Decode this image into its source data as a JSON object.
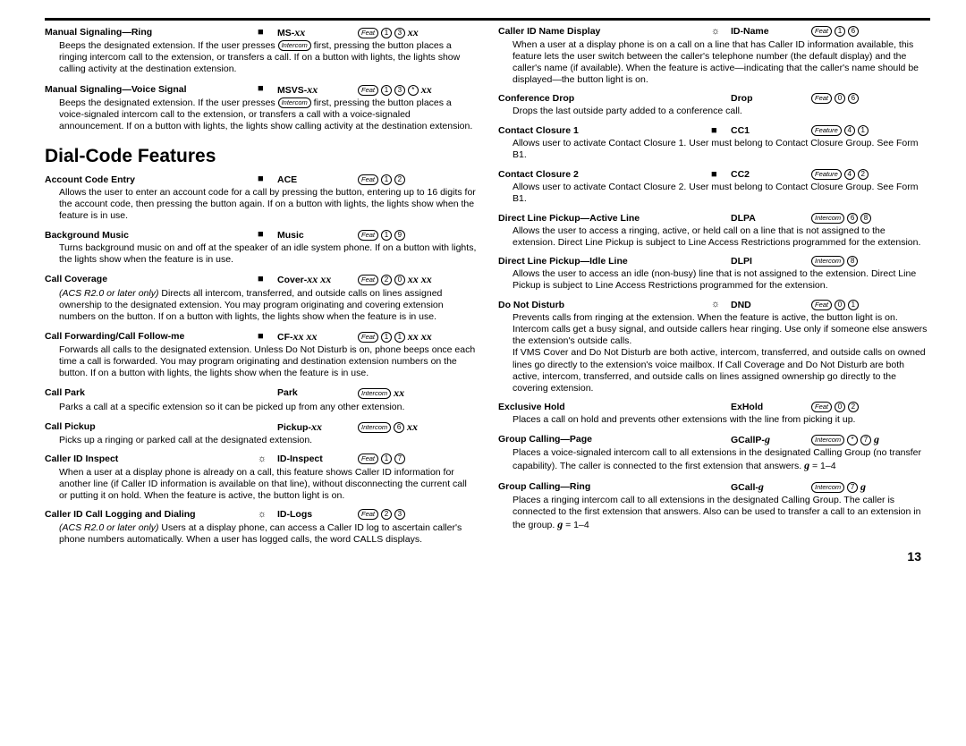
{
  "page_number": "13",
  "section_title": "Dial-Code Features",
  "colors": {
    "text": "#000000",
    "bg": "#ffffff",
    "rule": "#000000"
  },
  "fonts": {
    "body_pt": 10.5,
    "title_pt": 21
  },
  "left": [
    {
      "name": "Manual Signaling—Ring",
      "icon": "■",
      "short": "MS-",
      "short_xx": "xx",
      "seq": "<span class='key'>Feat</span> <span class='ck'>1</span> <span class='ck'>3</span> <span class='xx'>xx</span>",
      "desc": "Beeps the designated extension. If the user presses <span class='key'>Intercom</span> first, pressing the button places a ringing intercom call to the extension, or transfers a call. If on a button with lights, the lights show calling activity at the destination extension."
    },
    {
      "name": "Manual Signaling—Voice Signal",
      "icon": "■",
      "short": "MSVS-",
      "short_xx": "xx",
      "seq": "<span class='key'>Feat</span> <span class='ck'>1</span> <span class='ck'>3</span> <span class='ck'>*</span> <span class='xx'>xx</span>",
      "desc": "Beeps the designated extension. If the user presses <span class='key'>Intercom</span> first, pressing the button places a voice-signaled intercom call to the extension, or transfers a call with a voice-signaled announcement. If on a button with lights, the lights show calling activity at the destination extension."
    },
    {
      "section_break": true
    },
    {
      "name": "Account Code Entry",
      "icon": "■",
      "short": "ACE",
      "seq": "<span class='key'>Feat</span> <span class='ck'>1</span> <span class='ck'>2</span>",
      "desc": "Allows the user to enter an account code for a call by pressing the button, entering up to 16 digits for the account code, then pressing the button again. If on a button with lights, the lights show when the feature is in use."
    },
    {
      "name": "Background Music",
      "icon": "■",
      "short": "Music",
      "seq": "<span class='key'>Feat</span> <span class='ck'>1</span> <span class='ck'>9</span>",
      "desc": "Turns background music on and off at the speaker of an idle system phone. If on a button with lights, the lights show when the feature is in use."
    },
    {
      "name": "Call Coverage",
      "icon": "■",
      "short": "Cover-",
      "short_xx": "xx xx",
      "seq": "<span class='key'>Feat</span> <span class='ck'>2</span> <span class='ck'>0</span> <span class='xx'>xx xx</span>",
      "desc": "<span class='it'>(ACS R2.0 or later only)</span> Directs all intercom, transferred, and outside calls on lines assigned ownership to the designated extension. You may program originating and covering extension numbers on the button. If on a button with lights, the lights show when the feature is in use."
    },
    {
      "name": "Call Forwarding/Call Follow-me",
      "icon": "■",
      "short": "CF-",
      "short_xx": "xx xx",
      "seq": "<span class='key'>Feat</span> <span class='ck'>1</span> <span class='ck'>1</span> <span class='xx'>xx xx</span>",
      "desc": "Forwards all calls to the designated extension. Unless Do Not Disturb is on, phone beeps once each time a call is forwarded. You may program originating and destination extension numbers on the button. If on a button with lights, the lights show when the feature is in use."
    },
    {
      "name": "Call Park",
      "icon": "",
      "short": "Park",
      "seq": "<span class='key'>Intercom</span> <span class='xx'>xx</span>",
      "desc": "Parks a call at a specific extension so it can be picked up from any other extension."
    },
    {
      "name": "Call Pickup",
      "icon": "",
      "short": "Pickup-",
      "short_xx": "xx",
      "seq": "<span class='key'>Intercom</span> <span class='ck'>6</span> <span class='xx'>xx</span>",
      "desc": "Picks up a ringing or parked call at the designated extension."
    },
    {
      "name": "Caller ID Inspect",
      "icon": "☼",
      "short": "ID-Inspect",
      "seq": "<span class='key'>Feat</span> <span class='ck'>1</span> <span class='ck'>7</span>",
      "desc": "When a user at a display phone is already on a call, this feature shows Caller ID information for another line (if Caller ID information is available on that line), without disconnecting the current call or putting it on hold. When the feature is active, the button light is on."
    },
    {
      "name": "Caller ID Call Logging and Dialing",
      "icon": "☼",
      "short": "ID-Logs",
      "seq": "<span class='key'>Feat</span> <span class='ck'>2</span> <span class='ck'>3</span>",
      "desc": "<span class='it'>(ACS R2.0 or later only)</span> Users at a display phone, can access a Caller ID log to ascertain caller's phone numbers automatically. When a user has logged calls, the word CALLS displays."
    }
  ],
  "right": [
    {
      "name": "Caller ID Name Display",
      "icon": "☼",
      "short": "ID-Name",
      "seq": "<span class='key'>Feat</span> <span class='ck'>1</span> <span class='ck'>6</span>",
      "desc": "When a user at a display phone is on a call on a line that has Caller ID information available, this feature lets the user switch between the caller's telephone number (the default display) and the caller's name (if available). When the feature is active—indicating that the caller's name should be displayed—the button light is on."
    },
    {
      "name": "Conference Drop",
      "icon": "",
      "short": "Drop",
      "seq": "<span class='key'>Feat</span> <span class='ck'>0</span> <span class='ck'>6</span>",
      "desc": "Drops the last outside party added to a conference call."
    },
    {
      "name": "Contact Closure 1",
      "icon": "■",
      "short": "CC1",
      "seq": "<span class='key'>Feature</span> <span class='ck'>4</span> <span class='ck'>1</span>",
      "desc": "Allows user to activate Contact Closure 1. User must belong to Contact Closure Group. See Form B1."
    },
    {
      "name": "Contact Closure 2",
      "icon": "■",
      "short": "CC2",
      "seq": "<span class='key'>Feature</span> <span class='ck'>4</span> <span class='ck'>2</span>",
      "desc": "Allows user to activate Contact Closure 2. User must belong to Contact Closure Group. See Form B1."
    },
    {
      "name": "Direct Line Pickup—Active Line",
      "icon": "",
      "short": "DLPA",
      "seq": "<span class='key'>Intercom</span> <span class='ck'>6</span> <span class='ck'>8</span>",
      "desc": "Allows the user to access a ringing, active, or held call on a line that is not assigned to the extension. Direct Line Pickup is subject to Line Access Restrictions programmed for the extension."
    },
    {
      "name": "Direct Line Pickup—Idle Line",
      "icon": "",
      "short": "DLPI",
      "seq": "<span class='key'>Intercom</span> <span class='ck'>8</span>",
      "desc": "Allows the user to access an idle (non-busy) line that is not assigned to the extension. Direct Line Pickup is subject to Line Access Restrictions programmed for the extension."
    },
    {
      "name": "Do Not Disturb",
      "icon": "☼",
      "short": "DND",
      "seq": "<span class='key'>Feat</span> <span class='ck'>0</span> <span class='ck'>1</span>",
      "desc": "Prevents calls from ringing at the extension. When the feature is active, the button light is on. Intercom calls get a busy signal, and outside callers hear ringing. Use only if someone else answers the extension's outside calls.<br>If VMS Cover and Do Not Disturb are both active, intercom, transferred, and outside calls on owned lines go directly to the extension's voice mailbox. If Call Coverage and Do Not Disturb are both active, intercom, transferred, and outside calls on lines assigned ownership go directly to the covering extension."
    },
    {
      "name": "Exclusive Hold",
      "icon": "",
      "short": "ExHold",
      "seq": "<span class='key'>Feat</span> <span class='ck'>0</span> <span class='ck'>2</span>",
      "desc": "Places a call on hold and prevents other extensions with the line from picking it up."
    },
    {
      "name": "Group Calling—Page",
      "icon": "",
      "short": "GCallP-",
      "short_g": "g",
      "seq": "<span class='key'>Intercom</span> <span class='ck'>*</span> <span class='ck'>7</span> <span class='g'>g</span>",
      "desc": "Places a voice-signaled intercom call to all extensions in the designated Calling Group (no transfer capability). The caller is connected to the first extension that answers. <span class='g'>g</span> = 1–4"
    },
    {
      "name": "Group Calling—Ring",
      "icon": "",
      "short": "GCall-",
      "short_g": "g",
      "seq": "<span class='key'>Intercom</span> <span class='ck'>7</span> <span class='g'>g</span>",
      "desc": "Places a ringing intercom call to all extensions in the designated Calling Group. The caller is connected to the first extension that answers. Also can be used to transfer a call to an extension in the group. <span class='g'>g</span> = 1–4"
    }
  ]
}
